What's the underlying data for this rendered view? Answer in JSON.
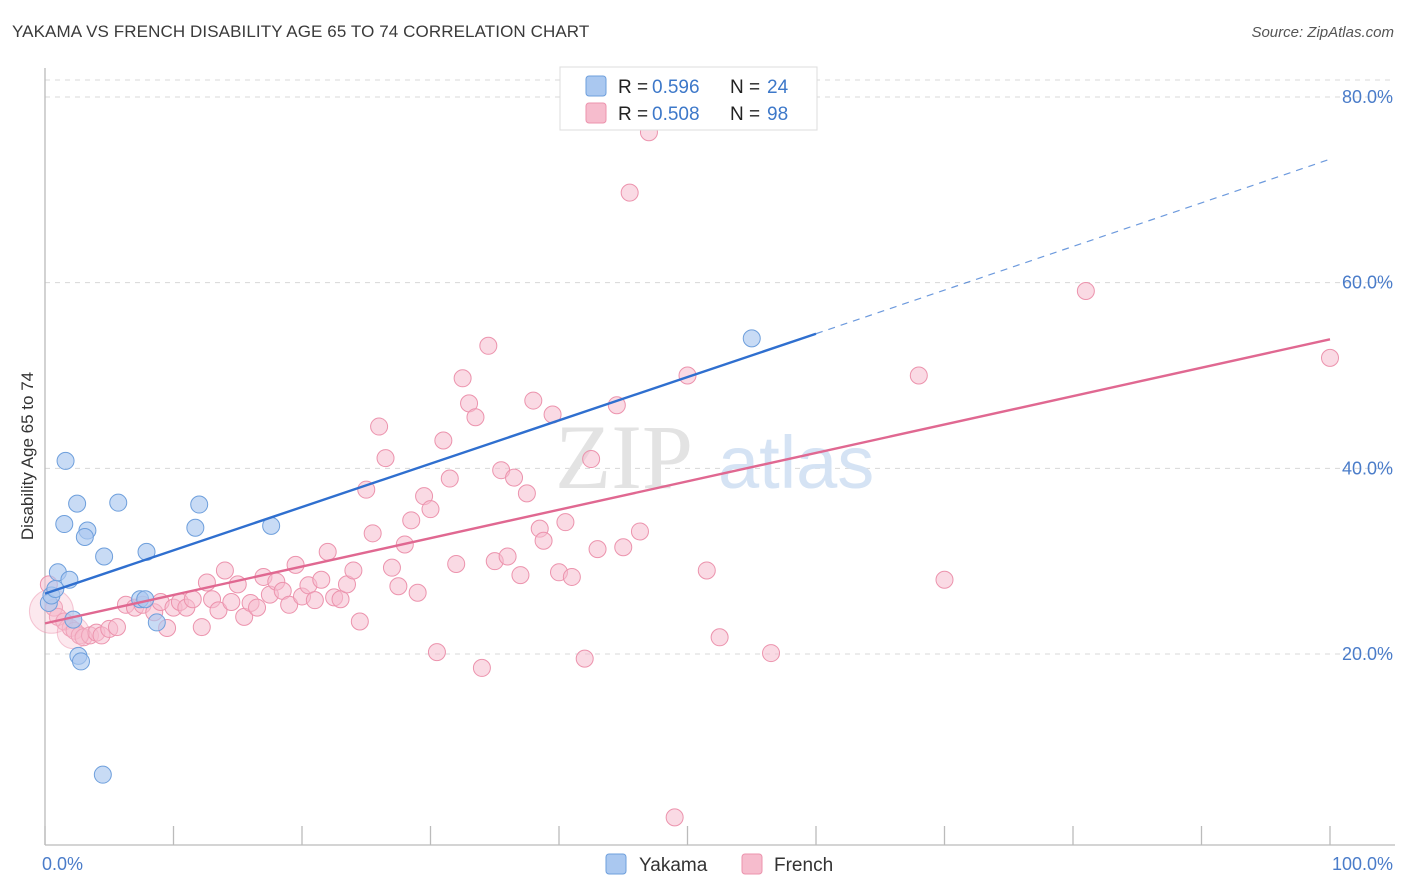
{
  "title": "YAKAMA VS FRENCH DISABILITY AGE 65 TO 74 CORRELATION CHART",
  "source": "Source: ZipAtlas.com",
  "watermark": {
    "zip": "ZIP",
    "atlas": "atlas"
  },
  "colors": {
    "yakama_fill": "#aac8f0",
    "yakama_stroke": "#6e9fdc",
    "yakama_line": "#2f6fcf",
    "french_fill": "#f6bccd",
    "french_stroke": "#ec93ad",
    "french_line": "#e06891",
    "tick_label": "#4a7cc9",
    "grid": "#d8d8d8"
  },
  "legend": {
    "rows": [
      {
        "r_label": "R = ",
        "r_value": "0.596",
        "n_label": "N = ",
        "n_value": "24"
      },
      {
        "r_label": "R = ",
        "r_value": "0.508",
        "n_label": "N = ",
        "n_value": "98"
      }
    ]
  },
  "chart_data": {
    "type": "scatter",
    "title": "YAKAMA VS FRENCH DISABILITY AGE 65 TO 74 CORRELATION CHART",
    "xlabel": "",
    "ylabel": "Disability Age 65 to 74",
    "xlim": [
      0,
      100
    ],
    "ylim": [
      0,
      83
    ],
    "x_ticks": [
      0,
      100
    ],
    "x_tick_labels": [
      "0.0%",
      "100.0%"
    ],
    "y_ticks": [
      20,
      40,
      60,
      80
    ],
    "y_tick_labels": [
      "20.0%",
      "40.0%",
      "60.0%",
      "80.0%"
    ],
    "legend_position": "top-center",
    "series": [
      {
        "name": "Yakama",
        "R": 0.596,
        "N": 24,
        "trend": {
          "x0": 0,
          "y0": 26.5,
          "x1": 60,
          "y1": 54.5,
          "dash_to_x": 100,
          "dash_to_y": 73.3
        },
        "points": [
          [
            0.3,
            25.5
          ],
          [
            0.5,
            26.3
          ],
          [
            0.8,
            27.0
          ],
          [
            1.0,
            28.8
          ],
          [
            1.5,
            34.0
          ],
          [
            1.6,
            40.8
          ],
          [
            1.9,
            28.0
          ],
          [
            2.2,
            23.7
          ],
          [
            2.6,
            19.8
          ],
          [
            2.8,
            19.2
          ],
          [
            3.3,
            33.3
          ],
          [
            3.1,
            32.6
          ],
          [
            2.5,
            36.2
          ],
          [
            4.6,
            30.5
          ],
          [
            5.7,
            36.3
          ],
          [
            7.4,
            25.9
          ],
          [
            7.8,
            25.9
          ],
          [
            7.9,
            31.0
          ],
          [
            8.7,
            23.4
          ],
          [
            11.7,
            33.6
          ],
          [
            12.0,
            36.1
          ],
          [
            17.6,
            33.8
          ],
          [
            55.0,
            54.0
          ],
          [
            4.5,
            7.0
          ]
        ]
      },
      {
        "name": "French",
        "R": 0.508,
        "N": 98,
        "trend": {
          "x0": 0,
          "y0": 23.3,
          "x1": 100,
          "y1": 53.9
        },
        "points": [
          [
            0.3,
            27.5
          ],
          [
            0.7,
            25.0
          ],
          [
            1.0,
            24.0
          ],
          [
            1.5,
            23.5
          ],
          [
            2.0,
            22.8
          ],
          [
            2.3,
            22.5
          ],
          [
            2.7,
            22.0
          ],
          [
            3.0,
            21.8
          ],
          [
            3.5,
            22.0
          ],
          [
            4.0,
            22.3
          ],
          [
            4.4,
            22.0
          ],
          [
            5.0,
            22.7
          ],
          [
            5.6,
            22.9
          ],
          [
            6.3,
            25.3
          ],
          [
            7.0,
            25.0
          ],
          [
            7.6,
            25.3
          ],
          [
            8.5,
            24.5
          ],
          [
            9.0,
            25.6
          ],
          [
            9.5,
            22.8
          ],
          [
            10.0,
            25.0
          ],
          [
            10.5,
            25.6
          ],
          [
            11.0,
            25.0
          ],
          [
            11.5,
            25.9
          ],
          [
            12.2,
            22.9
          ],
          [
            12.6,
            27.7
          ],
          [
            13.0,
            25.9
          ],
          [
            13.5,
            24.7
          ],
          [
            14.0,
            29.0
          ],
          [
            14.5,
            25.6
          ],
          [
            15.0,
            27.5
          ],
          [
            15.5,
            24.0
          ],
          [
            16.0,
            25.5
          ],
          [
            16.5,
            25.0
          ],
          [
            17.0,
            28.3
          ],
          [
            17.5,
            26.4
          ],
          [
            18.0,
            27.8
          ],
          [
            18.5,
            26.8
          ],
          [
            19.0,
            25.3
          ],
          [
            19.5,
            29.6
          ],
          [
            20.0,
            26.2
          ],
          [
            20.5,
            27.4
          ],
          [
            21.0,
            25.8
          ],
          [
            21.5,
            28.0
          ],
          [
            22.0,
            31.0
          ],
          [
            22.5,
            26.1
          ],
          [
            23.0,
            25.9
          ],
          [
            23.5,
            27.5
          ],
          [
            24.0,
            29.0
          ],
          [
            24.5,
            23.5
          ],
          [
            25.0,
            37.7
          ],
          [
            25.5,
            33.0
          ],
          [
            26.0,
            44.5
          ],
          [
            26.5,
            41.1
          ],
          [
            27.0,
            29.3
          ],
          [
            27.5,
            27.3
          ],
          [
            28.0,
            31.8
          ],
          [
            28.5,
            34.4
          ],
          [
            29.0,
            26.6
          ],
          [
            29.5,
            37.0
          ],
          [
            30.0,
            35.6
          ],
          [
            30.5,
            20.2
          ],
          [
            31.0,
            43.0
          ],
          [
            31.5,
            38.9
          ],
          [
            32.0,
            29.7
          ],
          [
            32.5,
            49.7
          ],
          [
            33.0,
            47.0
          ],
          [
            33.5,
            45.5
          ],
          [
            34.0,
            18.5
          ],
          [
            34.5,
            53.2
          ],
          [
            35.0,
            30.0
          ],
          [
            35.5,
            39.8
          ],
          [
            36.0,
            30.5
          ],
          [
            36.5,
            39.0
          ],
          [
            37.0,
            28.5
          ],
          [
            37.5,
            37.3
          ],
          [
            38.0,
            47.3
          ],
          [
            38.5,
            33.5
          ],
          [
            38.8,
            32.2
          ],
          [
            39.5,
            45.8
          ],
          [
            40.0,
            28.8
          ],
          [
            40.5,
            34.2
          ],
          [
            41.0,
            28.3
          ],
          [
            42.0,
            19.5
          ],
          [
            42.5,
            41.0
          ],
          [
            43.0,
            31.3
          ],
          [
            44.5,
            46.8
          ],
          [
            45.0,
            31.5
          ],
          [
            45.5,
            69.7
          ],
          [
            46.3,
            33.2
          ],
          [
            47.0,
            76.2
          ],
          [
            49.0,
            2.4
          ],
          [
            50.0,
            50.0
          ],
          [
            51.5,
            29.0
          ],
          [
            52.5,
            21.8
          ],
          [
            56.5,
            20.1
          ],
          [
            68.0,
            50.0
          ],
          [
            70.0,
            28.0
          ],
          [
            81.0,
            59.1
          ]
        ],
        "extra_points": [
          [
            100,
            51.9
          ]
        ]
      }
    ]
  },
  "bottom_legend": [
    "Yakama",
    "French"
  ]
}
